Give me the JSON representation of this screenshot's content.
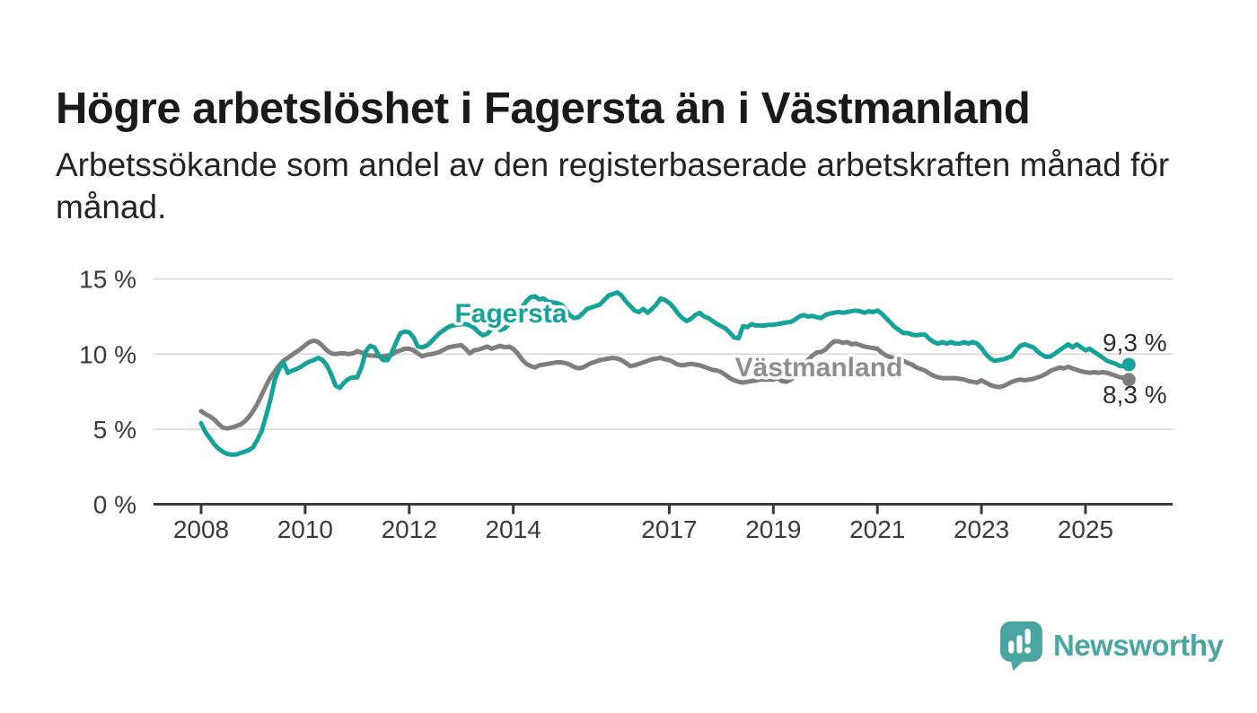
{
  "header": {
    "title": "Högre arbetslöshet i Fagersta än i Västmanland",
    "subtitle_line1": "Arbetssökande som andel av den registerbaserade arbetskraften månad för",
    "subtitle_line2": "månad."
  },
  "theme": {
    "title-color": "#1a1a1a",
    "subtitle-color": "#242424",
    "axis-color": "#3a3a3a",
    "grid-color": "#dadada",
    "logo-color": "#49a6a0"
  },
  "footer": {
    "brand_name": "Newsworthy",
    "logo_icon": "bar-chart-speech-bubble"
  },
  "chart_data": {
    "type": "line",
    "x_unit": "month",
    "x_start_year": 2008,
    "points_per_year": 12,
    "period_label_start": "2008-01",
    "period_label_end": "2025-11",
    "x_ticks": [
      2008,
      2010,
      2012,
      2014,
      2017,
      2019,
      2021,
      2023,
      2025
    ],
    "y_ticks": [
      0,
      5,
      10,
      15
    ],
    "y_tick_suffix": " %",
    "ylim": [
      0,
      16.5
    ],
    "grid": "horizontal",
    "legend_position": "inline-labels",
    "series": [
      {
        "name": "Fagersta",
        "color": "#14a29a",
        "label_color": "#14a29a",
        "end_label": "9,3 %",
        "end_value": 9.3,
        "values": [
          5.4,
          4.8,
          4.4,
          4.0,
          3.7,
          3.5,
          3.35,
          3.3,
          3.3,
          3.4,
          3.5,
          3.6,
          3.8,
          4.3,
          4.9,
          5.9,
          7.0,
          8.3,
          9.0,
          9.45,
          8.75,
          8.9,
          9.0,
          9.15,
          9.35,
          9.5,
          9.6,
          9.75,
          9.6,
          9.25,
          8.65,
          7.9,
          7.75,
          8.1,
          8.35,
          8.45,
          8.45,
          9.1,
          10.2,
          10.55,
          10.45,
          9.9,
          9.6,
          9.6,
          10.1,
          10.8,
          11.4,
          11.5,
          11.45,
          11.1,
          10.5,
          10.45,
          10.55,
          10.8,
          11.1,
          11.4,
          11.6,
          11.8,
          11.9,
          11.95,
          12.0,
          12.0,
          11.9,
          11.75,
          11.45,
          11.25,
          11.35,
          11.65,
          11.8,
          11.6,
          11.7,
          12.0,
          12.3,
          12.7,
          13.1,
          13.5,
          13.8,
          13.85,
          13.65,
          13.7,
          13.5,
          13.45,
          13.4,
          13.3,
          13.0,
          12.6,
          12.4,
          12.45,
          12.7,
          13.0,
          13.1,
          13.2,
          13.3,
          13.6,
          13.9,
          14.0,
          14.1,
          13.9,
          13.5,
          13.2,
          12.9,
          12.8,
          13.0,
          12.75,
          13.0,
          13.3,
          13.7,
          13.6,
          13.4,
          13.1,
          12.7,
          12.4,
          12.2,
          12.35,
          12.6,
          12.75,
          12.5,
          12.4,
          12.2,
          12.0,
          11.85,
          11.7,
          11.4,
          11.1,
          11.05,
          11.85,
          11.8,
          12.0,
          11.9,
          11.9,
          11.9,
          11.95,
          11.95,
          12.0,
          12.05,
          12.1,
          12.15,
          12.3,
          12.5,
          12.6,
          12.5,
          12.55,
          12.45,
          12.4,
          12.6,
          12.7,
          12.75,
          12.8,
          12.75,
          12.8,
          12.85,
          12.9,
          12.85,
          12.75,
          12.85,
          12.8,
          12.9,
          12.7,
          12.4,
          12.1,
          11.8,
          11.6,
          11.4,
          11.4,
          11.3,
          11.25,
          11.3,
          11.3,
          11.0,
          10.8,
          10.7,
          10.8,
          10.7,
          10.8,
          10.7,
          10.7,
          10.8,
          10.7,
          10.8,
          10.7,
          10.4,
          10.0,
          9.7,
          9.55,
          9.6,
          9.65,
          9.75,
          9.85,
          10.25,
          10.55,
          10.65,
          10.55,
          10.45,
          10.15,
          9.95,
          9.8,
          9.85,
          10.05,
          10.25,
          10.45,
          10.65,
          10.45,
          10.65,
          10.45,
          10.25,
          10.35,
          10.15,
          9.95,
          9.75,
          9.55,
          9.45,
          9.35,
          9.2,
          9.2,
          9.3
        ]
      },
      {
        "name": "Västmanland",
        "color": "#7e7e7e",
        "label_color": "#8e8e8e",
        "end_label": "8,3 %",
        "end_value": 8.3,
        "values": [
          6.2,
          6.0,
          5.85,
          5.65,
          5.35,
          5.1,
          5.05,
          5.1,
          5.2,
          5.3,
          5.5,
          5.8,
          6.2,
          6.7,
          7.3,
          7.9,
          8.45,
          8.85,
          9.25,
          9.55,
          9.75,
          9.95,
          10.15,
          10.35,
          10.6,
          10.8,
          10.9,
          10.8,
          10.55,
          10.25,
          10.05,
          10.0,
          10.05,
          10.05,
          10.0,
          10.05,
          10.2,
          10.1,
          9.95,
          9.9,
          9.9,
          9.85,
          9.85,
          9.9,
          9.95,
          10.15,
          10.25,
          10.35,
          10.35,
          10.25,
          10.05,
          9.85,
          9.95,
          10.0,
          10.05,
          10.15,
          10.3,
          10.45,
          10.5,
          10.55,
          10.6,
          10.35,
          10.05,
          10.25,
          10.3,
          10.4,
          10.5,
          10.35,
          10.45,
          10.55,
          10.45,
          10.5,
          10.35,
          10.05,
          9.65,
          9.35,
          9.2,
          9.1,
          9.25,
          9.3,
          9.35,
          9.4,
          9.45,
          9.45,
          9.4,
          9.3,
          9.15,
          9.05,
          9.1,
          9.25,
          9.4,
          9.5,
          9.6,
          9.65,
          9.7,
          9.75,
          9.7,
          9.6,
          9.4,
          9.2,
          9.25,
          9.35,
          9.45,
          9.55,
          9.65,
          9.7,
          9.75,
          9.65,
          9.6,
          9.45,
          9.3,
          9.25,
          9.3,
          9.35,
          9.3,
          9.25,
          9.15,
          9.05,
          8.95,
          8.9,
          8.8,
          8.6,
          8.4,
          8.25,
          8.15,
          8.1,
          8.15,
          8.2,
          8.25,
          8.3,
          8.3,
          8.3,
          8.3,
          8.4,
          8.2,
          8.15,
          8.3,
          8.5,
          8.8,
          9.2,
          9.6,
          9.9,
          10.1,
          10.15,
          10.3,
          10.6,
          10.85,
          10.85,
          10.75,
          10.8,
          10.65,
          10.7,
          10.6,
          10.5,
          10.45,
          10.4,
          10.35,
          10.1,
          9.9,
          9.8,
          9.7,
          9.6,
          9.55,
          9.4,
          9.3,
          9.1,
          9.0,
          8.9,
          8.7,
          8.55,
          8.45,
          8.4,
          8.4,
          8.4,
          8.4,
          8.35,
          8.3,
          8.2,
          8.15,
          8.1,
          8.25,
          8.1,
          7.95,
          7.85,
          7.8,
          7.85,
          8.0,
          8.15,
          8.25,
          8.3,
          8.25,
          8.3,
          8.35,
          8.45,
          8.55,
          8.7,
          8.9,
          9.0,
          9.1,
          9.05,
          9.15,
          9.05,
          8.95,
          8.85,
          8.8,
          8.75,
          8.8,
          8.75,
          8.8,
          8.75,
          8.65,
          8.55,
          8.45,
          8.4,
          8.3
        ]
      }
    ]
  }
}
